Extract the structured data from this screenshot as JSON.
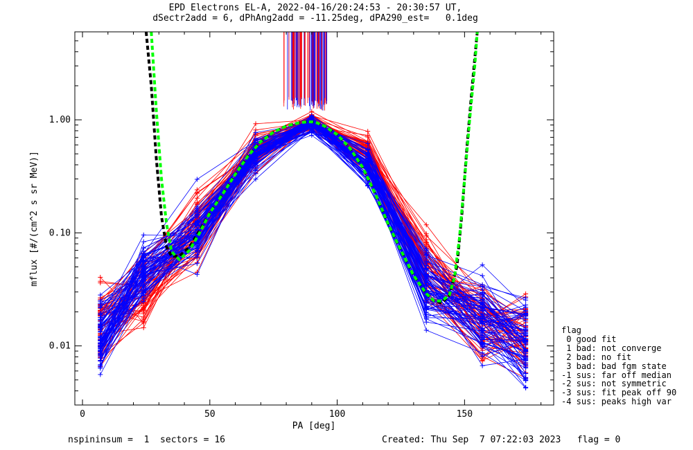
{
  "title_line1": "EPD Electrons EL-A, 2022-04-16/20:24:53 - 20:30:57 UT,",
  "title_line2": "dSectr2add = 6, dPhAng2add = -11.25deg, dPA290_est=   0.1deg",
  "footer_left": "nspininsum =  1  sectors = 16",
  "footer_right": "Created: Thu Sep  7 07:22:03 2023   flag = 0",
  "legend": {
    "title": "flag",
    "items": [
      " 0 good fit",
      " 1 bad: not converge",
      " 2 bad: no fit",
      " 3 bad: bad fgm state",
      "-1 sus: far off median",
      "-2 sus: not symmetric",
      "-3 sus: fit peak off 90",
      "-4 sus: peaks high var"
    ]
  },
  "colors": {
    "red_series": "#ff0000",
    "blue_series": "#0000ff",
    "fit_green": "#00ff00",
    "fit_black": "#000000"
  },
  "chart_data": {
    "type": "line",
    "xlabel": "PA [deg]",
    "ylabel": "mflux [#/(cm^2 s sr MeV)]",
    "xlim": [
      -3,
      185
    ],
    "ylim": [
      0.003,
      6.0
    ],
    "yscale": "log",
    "xticks": [
      0,
      50,
      100,
      150
    ],
    "xtick_labels": [
      "0",
      "50",
      "100",
      "150"
    ],
    "yticks": [
      0.01,
      0.1,
      1.0
    ],
    "ytick_labels": [
      "0.01",
      "0.10",
      "1.00"
    ],
    "pa_bins": [
      7,
      24,
      45,
      68,
      90,
      112,
      135,
      157,
      174
    ],
    "median_profile": {
      "red": [
        0.018,
        0.03,
        0.11,
        0.55,
        0.95,
        0.5,
        0.05,
        0.016,
        0.012
      ],
      "blue": [
        0.012,
        0.045,
        0.1,
        0.5,
        0.92,
        0.38,
        0.032,
        0.02,
        0.011
      ]
    },
    "fit_curves": {
      "green": {
        "x": [
          27,
          29,
          31,
          33,
          35,
          38,
          42,
          46,
          50,
          55,
          60,
          65,
          70,
          75,
          80,
          85,
          88,
          90,
          92,
          95,
          100,
          105,
          110,
          115,
          120,
          125,
          130,
          135,
          138,
          141,
          144,
          146,
          148,
          150,
          152,
          154,
          155
        ],
        "y": [
          6.0,
          1.2,
          0.3,
          0.12,
          0.068,
          0.058,
          0.07,
          0.1,
          0.15,
          0.22,
          0.33,
          0.48,
          0.64,
          0.78,
          0.88,
          0.94,
          0.96,
          0.96,
          0.94,
          0.88,
          0.74,
          0.56,
          0.38,
          0.22,
          0.12,
          0.07,
          0.042,
          0.029,
          0.025,
          0.025,
          0.028,
          0.04,
          0.09,
          0.3,
          1.0,
          3.0,
          6.0
        ]
      },
      "black": {
        "x": [
          25,
          27,
          29,
          31,
          33,
          35,
          38,
          42,
          46,
          50,
          55,
          60,
          65,
          70,
          75,
          80,
          85,
          88,
          90,
          92,
          95,
          100,
          105,
          110,
          115,
          120,
          125,
          130,
          135,
          138,
          141,
          144,
          147,
          149,
          151,
          153,
          155
        ],
        "y": [
          6.0,
          2.0,
          0.45,
          0.14,
          0.075,
          0.062,
          0.062,
          0.075,
          0.105,
          0.15,
          0.22,
          0.33,
          0.48,
          0.64,
          0.78,
          0.88,
          0.94,
          0.96,
          0.96,
          0.94,
          0.88,
          0.74,
          0.56,
          0.38,
          0.22,
          0.12,
          0.07,
          0.042,
          0.029,
          0.025,
          0.024,
          0.028,
          0.05,
          0.15,
          0.6,
          2.0,
          6.0
        ]
      }
    }
  }
}
